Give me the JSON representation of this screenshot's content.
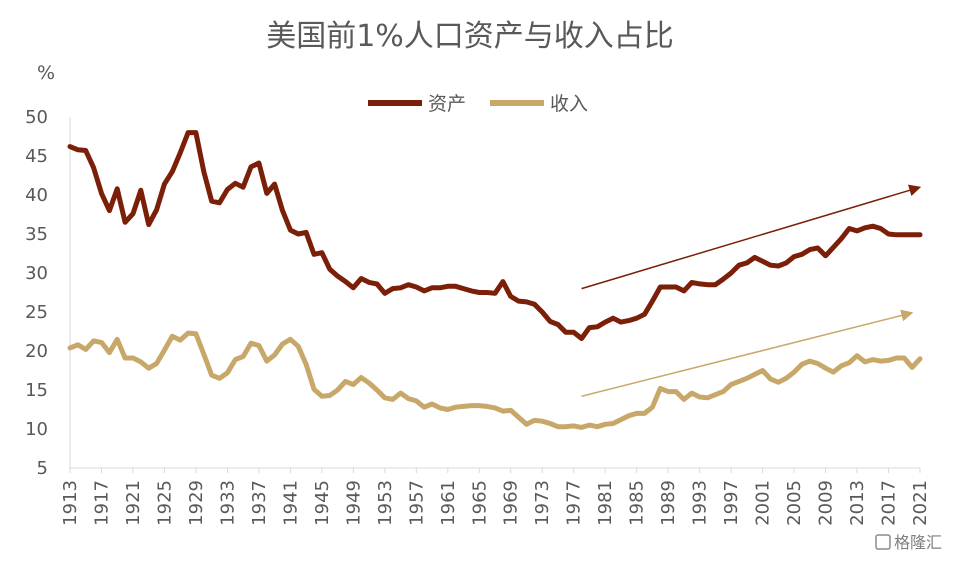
{
  "chart_data": {
    "type": "line",
    "title": "美国前1%人口资产与收入占比",
    "ylabel": "%",
    "ylim": [
      5,
      50
    ],
    "yticks": [
      5,
      10,
      15,
      20,
      25,
      30,
      35,
      40,
      45,
      50
    ],
    "xlim": [
      1913,
      2021
    ],
    "xticks": [
      1913,
      1917,
      1921,
      1925,
      1929,
      1933,
      1937,
      1941,
      1945,
      1949,
      1953,
      1957,
      1961,
      1965,
      1969,
      1973,
      1977,
      1981,
      1985,
      1989,
      1993,
      1997,
      2001,
      2005,
      2009,
      2013,
      2017,
      2021
    ],
    "grid": false,
    "legend_position": "top",
    "series": [
      {
        "name": "资产",
        "color": "#7b1f08",
        "x": [
          1913,
          1914,
          1915,
          1916,
          1917,
          1918,
          1919,
          1920,
          1921,
          1922,
          1923,
          1924,
          1925,
          1926,
          1927,
          1928,
          1929,
          1930,
          1931,
          1932,
          1933,
          1934,
          1935,
          1936,
          1937,
          1938,
          1939,
          1940,
          1941,
          1942,
          1943,
          1944,
          1945,
          1946,
          1947,
          1948,
          1949,
          1950,
          1951,
          1952,
          1953,
          1954,
          1955,
          1956,
          1957,
          1958,
          1959,
          1960,
          1961,
          1962,
          1963,
          1964,
          1965,
          1966,
          1967,
          1968,
          1969,
          1970,
          1971,
          1972,
          1973,
          1974,
          1975,
          1976,
          1977,
          1978,
          1979,
          1980,
          1981,
          1982,
          1983,
          1984,
          1985,
          1986,
          1987,
          1988,
          1989,
          1990,
          1991,
          1992,
          1993,
          1994,
          1995,
          1996,
          1997,
          1998,
          1999,
          2000,
          2001,
          2002,
          2003,
          2004,
          2005,
          2006,
          2007,
          2008,
          2009,
          2010,
          2011,
          2012,
          2013,
          2014,
          2015,
          2016,
          2017,
          2018,
          2019,
          2020,
          2021
        ],
        "values": [
          46.2,
          45.8,
          45.7,
          43.5,
          40.2,
          38.0,
          40.8,
          36.5,
          37.6,
          40.6,
          36.2,
          38.1,
          41.4,
          43.0,
          45.4,
          48.0,
          48.0,
          43.0,
          39.2,
          39.0,
          40.7,
          41.5,
          41.0,
          43.6,
          44.1,
          40.2,
          41.4,
          38.0,
          35.5,
          35.0,
          35.2,
          32.4,
          32.6,
          30.5,
          29.6,
          28.9,
          28.1,
          29.3,
          28.8,
          28.6,
          27.4,
          28.0,
          28.1,
          28.5,
          28.2,
          27.7,
          28.1,
          28.1,
          28.3,
          28.3,
          28.0,
          27.7,
          27.5,
          27.5,
          27.4,
          28.9,
          27.0,
          26.4,
          26.3,
          26.0,
          25.0,
          23.8,
          23.4,
          22.4,
          22.4,
          21.6,
          23.0,
          23.1,
          23.7,
          24.2,
          23.7,
          23.9,
          24.2,
          24.7,
          26.4,
          28.2,
          28.2,
          28.2,
          27.7,
          28.8,
          28.6,
          28.5,
          28.5,
          29.2,
          30.0,
          31.0,
          31.3,
          32.0,
          31.5,
          31.0,
          30.9,
          31.3,
          32.1,
          32.4,
          33.0,
          33.2,
          32.2,
          33.3,
          34.4,
          35.7,
          35.4,
          35.8,
          36.0,
          35.7,
          35.0,
          34.9,
          34.9,
          34.9,
          34.9
        ]
      },
      {
        "name": "收入",
        "color": "#c8a86a",
        "x": [
          1913,
          1914,
          1915,
          1916,
          1917,
          1918,
          1919,
          1920,
          1921,
          1922,
          1923,
          1924,
          1925,
          1926,
          1927,
          1928,
          1929,
          1930,
          1931,
          1932,
          1933,
          1934,
          1935,
          1936,
          1937,
          1938,
          1939,
          1940,
          1941,
          1942,
          1943,
          1944,
          1945,
          1946,
          1947,
          1948,
          1949,
          1950,
          1951,
          1952,
          1953,
          1954,
          1955,
          1956,
          1957,
          1958,
          1959,
          1960,
          1961,
          1962,
          1963,
          1964,
          1965,
          1966,
          1967,
          1968,
          1969,
          1970,
          1971,
          1972,
          1973,
          1974,
          1975,
          1976,
          1977,
          1978,
          1979,
          1980,
          1981,
          1982,
          1983,
          1984,
          1985,
          1986,
          1987,
          1988,
          1989,
          1990,
          1991,
          1992,
          1993,
          1994,
          1995,
          1996,
          1997,
          1998,
          1999,
          2000,
          2001,
          2002,
          2003,
          2004,
          2005,
          2006,
          2007,
          2008,
          2009,
          2010,
          2011,
          2012,
          2013,
          2014,
          2015,
          2016,
          2017,
          2018,
          2019,
          2020,
          2021
        ],
        "values": [
          20.4,
          20.8,
          20.2,
          21.3,
          21.1,
          19.8,
          21.5,
          19.1,
          19.1,
          18.6,
          17.8,
          18.4,
          20.1,
          21.9,
          21.4,
          22.3,
          22.2,
          19.6,
          16.9,
          16.5,
          17.2,
          18.9,
          19.3,
          21.0,
          20.7,
          18.7,
          19.5,
          20.9,
          21.5,
          20.6,
          18.3,
          15.1,
          14.2,
          14.3,
          15.0,
          16.1,
          15.7,
          16.6,
          15.9,
          15.0,
          14.0,
          13.8,
          14.6,
          13.9,
          13.6,
          12.8,
          13.2,
          12.7,
          12.5,
          12.8,
          12.9,
          13.0,
          13.0,
          12.9,
          12.7,
          12.3,
          12.4,
          11.5,
          10.6,
          11.1,
          11.0,
          10.7,
          10.3,
          10.3,
          10.4,
          10.2,
          10.5,
          10.3,
          10.6,
          10.7,
          11.2,
          11.7,
          12.0,
          12.0,
          12.8,
          15.2,
          14.8,
          14.8,
          13.8,
          14.6,
          14.1,
          14.0,
          14.4,
          14.8,
          15.7,
          16.1,
          16.5,
          17.0,
          17.5,
          16.4,
          16.0,
          16.5,
          17.3,
          18.3,
          18.7,
          18.4,
          17.8,
          17.3,
          18.1,
          18.5,
          19.4,
          18.6,
          18.9,
          18.7,
          18.8,
          19.1,
          19.1,
          17.9,
          19.0
        ]
      }
    ],
    "annotations": [
      {
        "type": "arrow",
        "from": [
          1978,
          28.0
        ],
        "to": [
          2021,
          41.0
        ],
        "color": "#7b1f08"
      },
      {
        "type": "arrow",
        "from": [
          1978,
          14.2
        ],
        "to": [
          2020,
          24.9
        ],
        "color": "#c8a86a"
      }
    ]
  },
  "watermark": "格隆汇"
}
